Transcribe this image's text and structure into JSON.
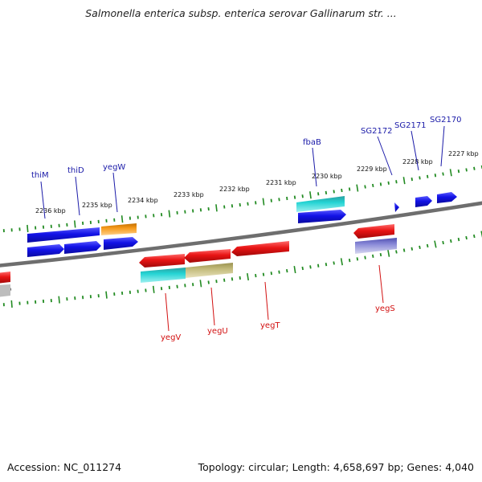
{
  "header": {
    "title": "Salmonella enterica subsp. enterica serovar Gallinarum str. ..."
  },
  "footer": {
    "accession": "Accession: NC_011274",
    "summary": "Topology: circular; Length: 4,658,697 bp; Genes: 4,040"
  },
  "scale": {
    "tick_labels": [
      "2236 kbp",
      "2235 kbp",
      "2234 kbp",
      "2233 kbp",
      "2232 kbp",
      "2231 kbp",
      "2230 kbp",
      "2229 kbp",
      "2228 kbp",
      "2227 kbp"
    ]
  },
  "genes_top": [
    "thiM",
    "thiD",
    "yegW",
    "fbaB",
    "SG2172",
    "SG2171",
    "SG2170"
  ],
  "genes_bottom": [
    "yegV",
    "yegU",
    "yegT",
    "yegS"
  ],
  "colors": {
    "forward": "#1010e0",
    "reverse": "#e01010",
    "cog_cyan": "#20c8c8",
    "cog_orange": "#f09010",
    "cog_olive": "#b8b070",
    "cog_purple": "#7070c8",
    "backbone": "#7a7a7a",
    "ticks": "#228b22"
  }
}
